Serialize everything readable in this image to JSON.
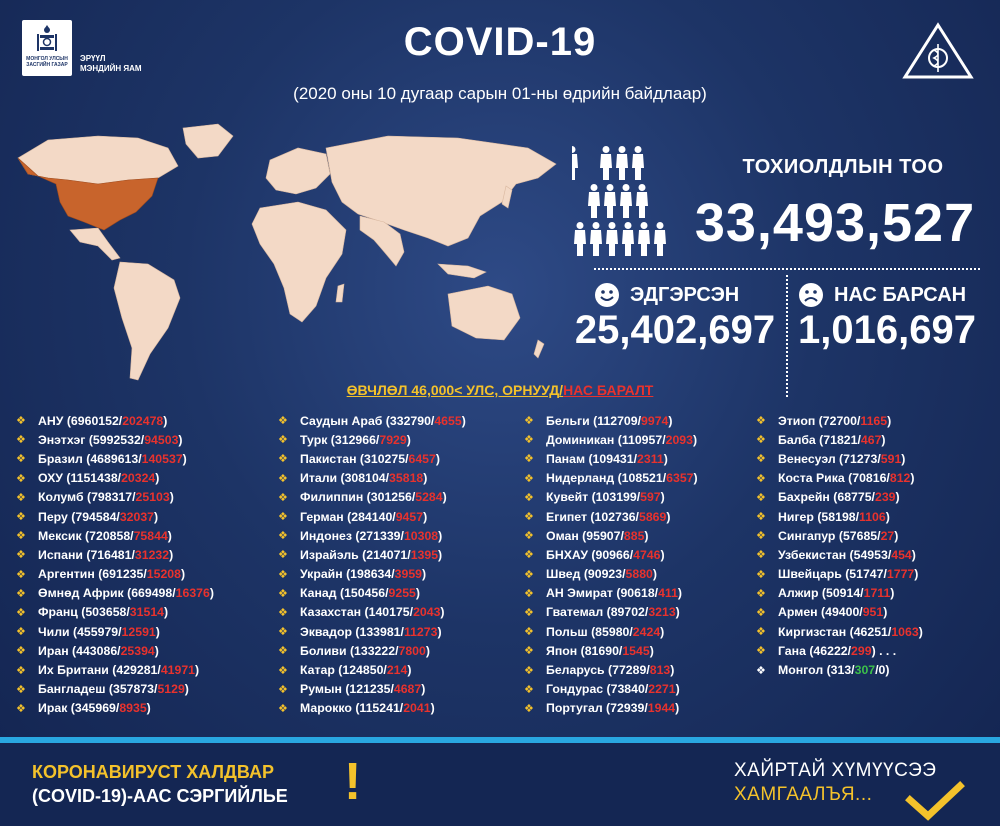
{
  "header": {
    "logo_text": "МОНГОЛ УЛСЫН ЗАСГИЙН ГАЗАР",
    "ministry_line1": "ЭРҮҮЛ",
    "ministry_line2": "МЭНДИЙН ЯАМ",
    "title": "COVID-19",
    "subtitle": "(2020 оны 10 дугаар сарын 01-ны өдрийн байдлаар)"
  },
  "stats": {
    "cases_label": "ТОХИОЛДЛЫН ТОО",
    "cases_value": "33,493,527",
    "recovered_label": "ЭДГЭРСЭН",
    "recovered_value": "25,402,697",
    "deaths_label": "НАС БАРСАН",
    "deaths_value": "1,016,697"
  },
  "banner": {
    "text": "ӨВЧЛӨЛ 46,000< УЛС, ОРНУУД",
    "sep": "/",
    "deaths": "НАС БАРАЛТ"
  },
  "columns": [
    [
      {
        "name": "АНУ",
        "cases": "6960152",
        "deaths": "202478"
      },
      {
        "name": "Энэтхэг",
        "cases": "5992532",
        "deaths": "94503"
      },
      {
        "name": "Бразил",
        "cases": "4689613",
        "deaths": "140537"
      },
      {
        "name": "ОХУ",
        "cases": "1151438",
        "deaths": "20324"
      },
      {
        "name": "Колумб",
        "cases": "798317",
        "deaths": "25103"
      },
      {
        "name": "Перу",
        "cases": "794584",
        "deaths": "32037"
      },
      {
        "name": "Мексик",
        "cases": "720858",
        "deaths": "75844"
      },
      {
        "name": "Испани",
        "cases": "716481",
        "deaths": "31232"
      },
      {
        "name": "Аргентин",
        "cases": "691235",
        "deaths": "15208"
      },
      {
        "name": "Өмнөд Африк",
        "cases": "669498",
        "deaths": "16376"
      },
      {
        "name": "Франц",
        "cases": "503658",
        "deaths": "31514"
      },
      {
        "name": "Чили",
        "cases": "455979",
        "deaths": "12591"
      },
      {
        "name": "Иран",
        "cases": "443086",
        "deaths": "25394"
      },
      {
        "name": "Их Британи",
        "cases": "429281",
        "deaths": "41971"
      },
      {
        "name": "Бангладеш",
        "cases": "357873",
        "deaths": "5129"
      },
      {
        "name": "Ирак",
        "cases": "345969",
        "deaths": "8935"
      }
    ],
    [
      {
        "name": "Саудын Араб",
        "cases": "332790",
        "deaths": "4655"
      },
      {
        "name": "Турк",
        "cases": "312966",
        "deaths": "7929"
      },
      {
        "name": "Пакистан",
        "cases": "310275",
        "deaths": "6457"
      },
      {
        "name": "Итали",
        "cases": "308104",
        "deaths": "35818"
      },
      {
        "name": "Филиппин",
        "cases": "301256",
        "deaths": "5284"
      },
      {
        "name": "Герман",
        "cases": "284140",
        "deaths": "9457"
      },
      {
        "name": "Индонез",
        "cases": "271339",
        "deaths": "10308"
      },
      {
        "name": "Израйэль",
        "cases": "214071",
        "deaths": "1395"
      },
      {
        "name": "Украйн",
        "cases": "198634",
        "deaths": "3959"
      },
      {
        "name": "Канад",
        "cases": "150456",
        "deaths": "9255"
      },
      {
        "name": "Казахстан",
        "cases": "140175",
        "deaths": "2043"
      },
      {
        "name": "Эквадор",
        "cases": "133981",
        "deaths": "11273"
      },
      {
        "name": "Боливи",
        "cases": "133222",
        "deaths": "7800"
      },
      {
        "name": "Катар",
        "cases": "124850",
        "deaths": "214"
      },
      {
        "name": "Румын",
        "cases": "121235",
        "deaths": "4687"
      },
      {
        "name": "Марокко",
        "cases": "115241",
        "deaths": "2041"
      }
    ],
    [
      {
        "name": "Бельги",
        "cases": "112709",
        "deaths": "9974"
      },
      {
        "name": "Доминикан",
        "cases": "110957",
        "deaths": "2093"
      },
      {
        "name": "Панам",
        "cases": "109431",
        "deaths": "2311"
      },
      {
        "name": "Нидерланд",
        "cases": "108521",
        "deaths": "6357"
      },
      {
        "name": "Кувейт",
        "cases": "103199",
        "deaths": "597"
      },
      {
        "name": "Египет",
        "cases": "102736",
        "deaths": "5869"
      },
      {
        "name": "Оман",
        "cases": "95907",
        "deaths": "885"
      },
      {
        "name": "БНХАУ",
        "cases": "90966",
        "deaths": "4746"
      },
      {
        "name": "Швед",
        "cases": "90923",
        "deaths": "5880"
      },
      {
        "name": "АН Эмират",
        "cases": "90618",
        "deaths": "411"
      },
      {
        "name": "Гватемал",
        "cases": "89702",
        "deaths": "3213"
      },
      {
        "name": "Польш",
        "cases": "85980",
        "deaths": "2424"
      },
      {
        "name": "Япон",
        "cases": "81690",
        "deaths": "1545"
      },
      {
        "name": "Беларусь",
        "cases": "77289",
        "deaths": "813"
      },
      {
        "name": "Гондурас",
        "cases": "73840",
        "deaths": "2271"
      },
      {
        "name": "Португал",
        "cases": "72939",
        "deaths": "1944"
      }
    ],
    [
      {
        "name": "Этиоп",
        "cases": "72700",
        "deaths": "1165"
      },
      {
        "name": "Балба",
        "cases": "71821",
        "deaths": "467"
      },
      {
        "name": "Венесуэл",
        "cases": "71273",
        "deaths": "591"
      },
      {
        "name": "Коста Рика",
        "cases": "70816",
        "deaths": "812"
      },
      {
        "name": "Бахрейн",
        "cases": "68775",
        "deaths": "239"
      },
      {
        "name": "Нигер",
        "cases": "58198",
        "deaths": "1106"
      },
      {
        "name": "Сингапур",
        "cases": "57685",
        "deaths": "27"
      },
      {
        "name": "Узбекистан",
        "cases": "54953",
        "deaths": "454"
      },
      {
        "name": "Швейцарь",
        "cases": "51747",
        "deaths": "1777"
      },
      {
        "name": "Алжир",
        "cases": "50914",
        "deaths": "1711"
      },
      {
        "name": "Армен",
        "cases": "49400",
        "deaths": "951"
      },
      {
        "name": "Киргизстан",
        "cases": "46251",
        "deaths": "1063"
      },
      {
        "name": "Гана",
        "cases": "46222",
        "deaths": "299",
        "suffix": " . . ."
      }
    ]
  ],
  "mongolia": {
    "name": "Монгол",
    "cases": "313",
    "recovered": "307",
    "deaths": "0"
  },
  "footer": {
    "left_line1": "КОРОНАВИРУСТ ХАЛДВАР",
    "left_line2": "(COVID-19)-ААС СЭРГИЙЛЬЕ",
    "exclamation": "!",
    "right_line1": "ХАЙРТАЙ ХҮМҮҮСЭЭ",
    "right_line2": "ХАМГААЛЪЯ..."
  },
  "colors": {
    "background": "#1d3466",
    "accent_yellow": "#f4c22b",
    "death_red": "#e8322d",
    "recovered_green": "#3cc04a",
    "footer_line": "#29a7e1",
    "map_land": "#f3d9c6",
    "map_usa": "#c8642c"
  }
}
